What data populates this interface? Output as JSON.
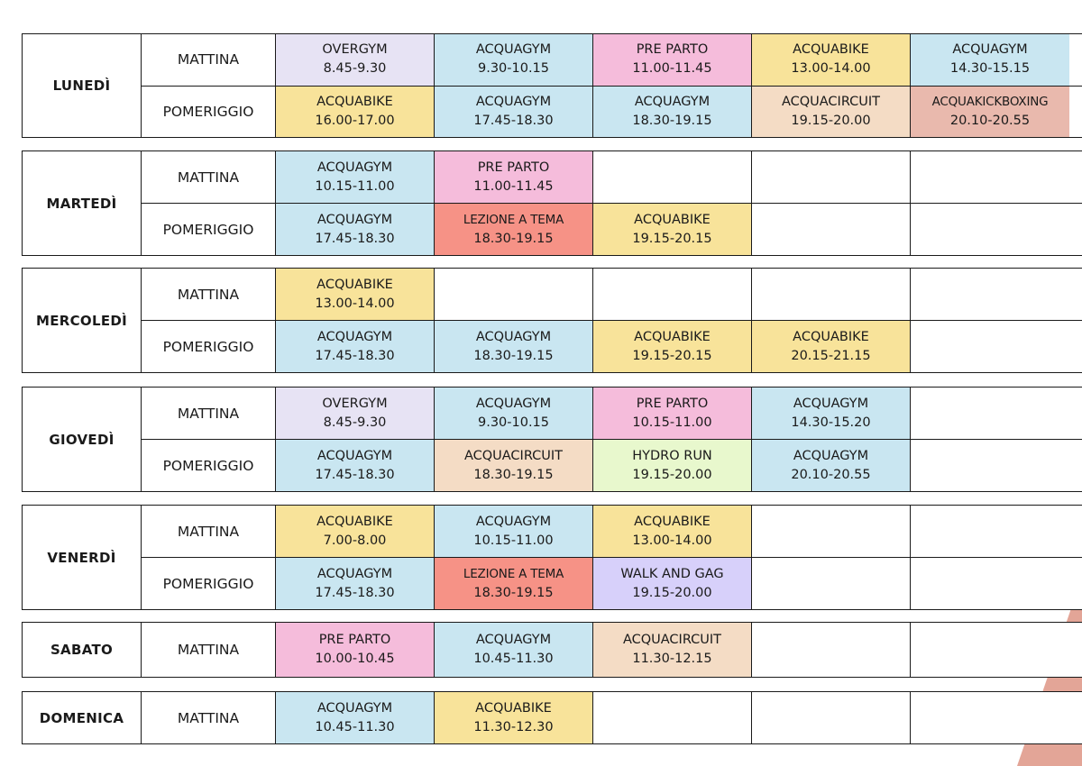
{
  "colors": {
    "OVERGYM": "#e7e3f4",
    "ACQUAGYM": "#c9e6f1",
    "PRE PARTO": "#f5bcdb",
    "ACQUABIKE": "#f8e39a",
    "ACQUACIRCUIT": "#f4dcc5",
    "ACQUAKICKBOXING": "#e9b9ad",
    "LEZIONE A TEMA": "#f69286",
    "HYDRO RUN": "#e8f8cd",
    "WALK AND GAG": "#d7d0fa"
  },
  "days": [
    {
      "name": "LUNEDÌ",
      "rows": [
        {
          "period": "MATTINA",
          "cells": [
            {
              "class": "OVERGYM",
              "time": "8.45-9.30"
            },
            {
              "class": "ACQUAGYM",
              "time": "9.30-10.15"
            },
            {
              "class": "PRE PARTO",
              "time": "11.00-11.45"
            },
            {
              "class": "ACQUABIKE",
              "time": "13.00-14.00"
            },
            {
              "class": "ACQUAGYM",
              "time": "14.30-15.15"
            }
          ]
        },
        {
          "period": "POMERIGGIO",
          "cells": [
            {
              "class": "ACQUABIKE",
              "time": "16.00-17.00"
            },
            {
              "class": "ACQUAGYM",
              "time": "17.45-18.30"
            },
            {
              "class": "ACQUAGYM",
              "time": "18.30-19.15"
            },
            {
              "class": "ACQUACIRCUIT",
              "time": "19.15-20.00"
            },
            {
              "class": "ACQUAKICKBOXING",
              "time": "20.10-20.55"
            }
          ]
        }
      ]
    },
    {
      "name": "MARTEDÌ",
      "rows": [
        {
          "period": "MATTINA",
          "cells": [
            {
              "class": "ACQUAGYM",
              "time": "10.15-11.00"
            },
            {
              "class": "PRE PARTO",
              "time": "11.00-11.45"
            },
            {},
            {},
            {}
          ]
        },
        {
          "period": "POMERIGGIO",
          "cells": [
            {
              "class": "ACQUAGYM",
              "time": "17.45-18.30"
            },
            {
              "class": "LEZIONE A TEMA",
              "time": "18.30-19.15"
            },
            {
              "class": "ACQUABIKE",
              "time": "19.15-20.15"
            },
            {},
            {}
          ]
        }
      ]
    },
    {
      "name": "MERCOLEDÌ",
      "rows": [
        {
          "period": "MATTINA",
          "cells": [
            {
              "class": "ACQUABIKE",
              "time": "13.00-14.00"
            },
            {},
            {},
            {},
            {}
          ]
        },
        {
          "period": "POMERIGGIO",
          "cells": [
            {
              "class": "ACQUAGYM",
              "time": "17.45-18.30"
            },
            {
              "class": "ACQUAGYM",
              "time": "18.30-19.15"
            },
            {
              "class": "ACQUABIKE",
              "time": "19.15-20.15"
            },
            {
              "class": "ACQUABIKE",
              "time": "20.15-21.15"
            },
            {}
          ]
        }
      ]
    },
    {
      "name": "GIOVEDÌ",
      "rows": [
        {
          "period": "MATTINA",
          "cells": [
            {
              "class": "OVERGYM",
              "time": "8.45-9.30"
            },
            {
              "class": "ACQUAGYM",
              "time": "9.30-10.15"
            },
            {
              "class": "PRE PARTO",
              "time": "10.15-11.00"
            },
            {
              "class": "ACQUAGYM",
              "time": "14.30-15.20"
            },
            {}
          ]
        },
        {
          "period": "POMERIGGIO",
          "cells": [
            {
              "class": "ACQUAGYM",
              "time": "17.45-18.30"
            },
            {
              "class": "ACQUACIRCUIT",
              "time": "18.30-19.15"
            },
            {
              "class": "HYDRO RUN",
              "time": "19.15-20.00"
            },
            {
              "class": "ACQUAGYM",
              "time": "20.10-20.55"
            },
            {}
          ]
        }
      ]
    },
    {
      "name": "VENERDÌ",
      "rows": [
        {
          "period": "MATTINA",
          "cells": [
            {
              "class": "ACQUABIKE",
              "time": "7.00-8.00"
            },
            {
              "class": "ACQUAGYM",
              "time": "10.15-11.00"
            },
            {
              "class": "ACQUABIKE",
              "time": "13.00-14.00"
            },
            {},
            {}
          ]
        },
        {
          "period": "POMERIGGIO",
          "cells": [
            {
              "class": "ACQUAGYM",
              "time": "17.45-18.30"
            },
            {
              "class": "LEZIONE A TEMA",
              "time": "18.30-19.15"
            },
            {
              "class": "WALK AND GAG",
              "time": "19.15-20.00"
            },
            {},
            {}
          ]
        }
      ]
    },
    {
      "name": "SABATO",
      "rows": [
        {
          "period": "MATTINA",
          "cells": [
            {
              "class": "PRE PARTO",
              "time": "10.00-10.45"
            },
            {
              "class": "ACQUAGYM",
              "time": "10.45-11.30"
            },
            {
              "class": "ACQUACIRCUIT",
              "time": "11.30-12.15"
            },
            {},
            {}
          ]
        }
      ]
    },
    {
      "name": "DOMENICA",
      "rows": [
        {
          "period": "MATTINA",
          "cells": [
            {
              "class": "ACQUAGYM",
              "time": "10.45-11.30"
            },
            {
              "class": "ACQUABIKE",
              "time": "11.30-12.30"
            },
            {},
            {},
            {}
          ]
        }
      ]
    }
  ]
}
